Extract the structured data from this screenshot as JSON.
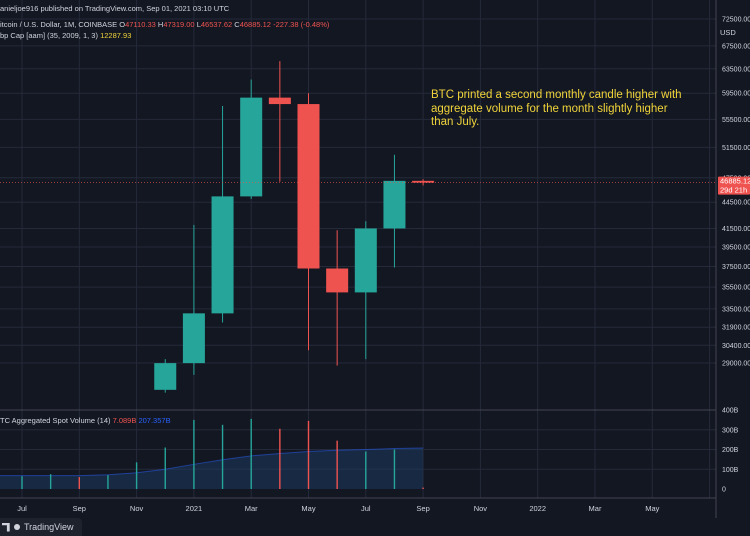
{
  "header": {
    "published": "anieljoe916 published on TradingView.com, Sep 01, 2021 03:10 UTC",
    "symbol": "itcoin / U.S. Dollar, 1M, COINBASE",
    "ohlc": {
      "o_label": "O",
      "o": "47110.33",
      "h_label": "H",
      "h": "47319.00",
      "l_label": "L",
      "l": "46537.62",
      "c_label": "C",
      "c": "46885.12",
      "chg": "-227.38 (-0.48%)"
    },
    "indicator": "bp Cap [aam] (35, 2009, 1, 3)",
    "indicator_value": "12287.93",
    "volume_name": "TC Aggregated Spot Volume (14)",
    "volume_val1": "7.089B",
    "volume_val2": "207.357B"
  },
  "annotation": "BTC printed a second monthly candle higher with aggregate volume for the month slightly higher than July.",
  "price_axis": {
    "currency": "USD",
    "ticks": [
      "72500.00",
      "67500.00",
      "63500.00",
      "59500.00",
      "55500.00",
      "51500.00",
      "47500.00",
      "44500.00",
      "41500.00",
      "39500.00",
      "37500.00",
      "35500.00",
      "33500.00",
      "31900.00",
      "30400.00",
      "29000.00"
    ],
    "last_price": "46885.12",
    "countdown": "29d 21h"
  },
  "volume_axis": {
    "ticks": [
      "400B",
      "300B",
      "200B",
      "100B",
      "0"
    ]
  },
  "branding": "TradingView",
  "colors": {
    "up": "#26a69a",
    "down": "#ef5350",
    "text": "#d1d4dc",
    "grid": "#252a3a",
    "note": "#f0d43a",
    "ma_fill": "#1e3a5f",
    "ma_line": "#2962ff"
  },
  "chart_data": {
    "type": "candlestick",
    "scale": "log",
    "x_labels": [
      "Jul",
      "Sep",
      "Nov",
      "2021",
      "Mar",
      "May",
      "Jul",
      "Sep",
      "Nov",
      "2022",
      "Mar",
      "May"
    ],
    "candles": [
      {
        "month": "2020-12",
        "open": 27000,
        "high": 29300,
        "low": 26800,
        "close": 28990
      },
      {
        "month": "2021-01",
        "open": 28990,
        "high": 41900,
        "low": 28100,
        "close": 33100
      },
      {
        "month": "2021-02",
        "open": 33100,
        "high": 57500,
        "low": 32300,
        "close": 45200
      },
      {
        "month": "2021-03",
        "open": 45200,
        "high": 61700,
        "low": 44900,
        "close": 58800
      },
      {
        "month": "2021-04",
        "open": 58800,
        "high": 64800,
        "low": 47000,
        "close": 57800
      },
      {
        "month": "2021-05",
        "open": 57800,
        "high": 59500,
        "low": 30000,
        "close": 37300
      },
      {
        "month": "2021-06",
        "open": 37300,
        "high": 41300,
        "low": 28800,
        "close": 35000
      },
      {
        "month": "2021-07",
        "open": 35000,
        "high": 42300,
        "low": 29300,
        "close": 41500
      },
      {
        "month": "2021-08",
        "open": 41500,
        "high": 50500,
        "low": 37400,
        "close": 47110
      },
      {
        "month": "2021-09",
        "open": 47110.33,
        "high": 47319.0,
        "low": 46537.62,
        "close": 46885.12
      }
    ],
    "volume": {
      "unit": "B",
      "ylim": [
        0,
        400
      ],
      "bars": [
        {
          "month": "2020-07",
          "value": 65,
          "dir": "up"
        },
        {
          "month": "2020-08",
          "value": 75,
          "dir": "up"
        },
        {
          "month": "2020-09",
          "value": 60,
          "dir": "down"
        },
        {
          "month": "2020-10",
          "value": 70,
          "dir": "up"
        },
        {
          "month": "2020-11",
          "value": 135,
          "dir": "up"
        },
        {
          "month": "2020-12",
          "value": 210,
          "dir": "up"
        },
        {
          "month": "2021-01",
          "value": 350,
          "dir": "up"
        },
        {
          "month": "2021-02",
          "value": 325,
          "dir": "up"
        },
        {
          "month": "2021-03",
          "value": 355,
          "dir": "up"
        },
        {
          "month": "2021-04",
          "value": 305,
          "dir": "down"
        },
        {
          "month": "2021-05",
          "value": 345,
          "dir": "down"
        },
        {
          "month": "2021-06",
          "value": 245,
          "dir": "down"
        },
        {
          "month": "2021-07",
          "value": 190,
          "dir": "up"
        },
        {
          "month": "2021-08",
          "value": 200,
          "dir": "up"
        },
        {
          "month": "2021-09",
          "value": 7.089,
          "dir": "down"
        }
      ],
      "ma": [
        68,
        68,
        68,
        72,
        82,
        100,
        125,
        148,
        168,
        180,
        190,
        196,
        200,
        205,
        207.357
      ]
    }
  }
}
